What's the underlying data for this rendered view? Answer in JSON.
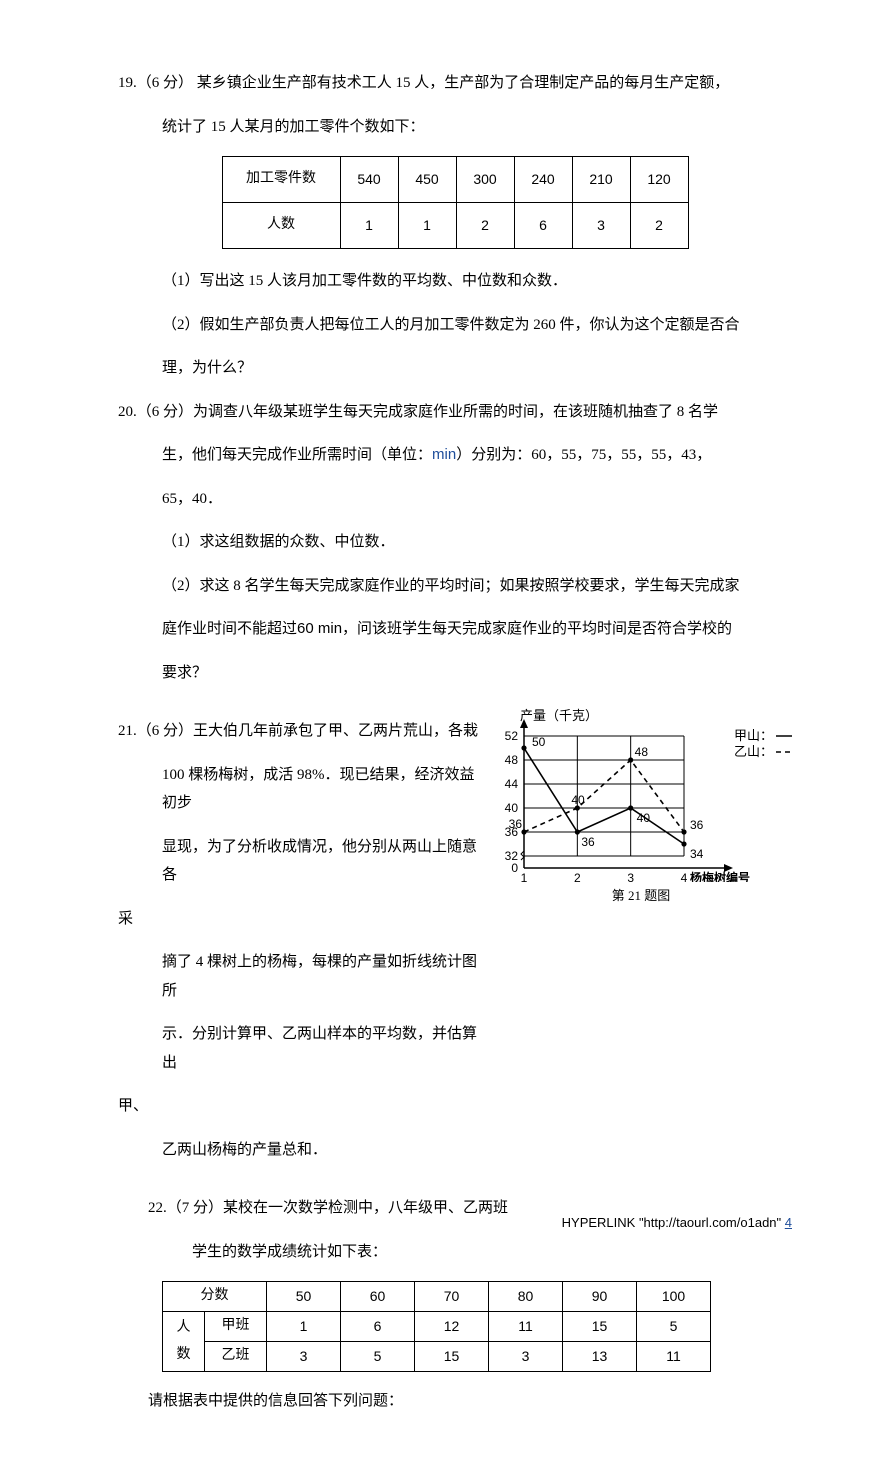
{
  "q19": {
    "label": "19.（6 分） 某乡镇企业生产部有技术工人 15 人，生产部为了合理制定产品的每月生产定额，",
    "label2": "统计了 15 人某月的加工零件个数如下：",
    "table": {
      "header": "加工零件数",
      "row2h": "人数",
      "cols": [
        "540",
        "450",
        "300",
        "240",
        "210",
        "120"
      ],
      "vals": [
        "1",
        "1",
        "2",
        "6",
        "3",
        "2"
      ]
    },
    "p1": "（1）写出这 15 人该月加工零件数的平均数、中位数和众数．",
    "p2a": "（2）假如生产部负责人把每位工人的月加工零件数定为 260 件，你认为这个定额是否合",
    "p2b": "理，为什么？"
  },
  "q20": {
    "l1": "20.（6 分）为调查八年级某班学生每天完成家庭作业所需的时间，在该班随机抽查了 8 名学",
    "l2a": "生，他们每天完成作业所需时间（单位：",
    "l2unit": "min",
    "l2b": "）分别为：60，55，75，55，55，43，",
    "l3": "65，40．",
    "p1": "（1）求这组数据的众数、中位数．",
    "p2a": "（2）求这 8 名学生每天完成家庭作业的平均时间；如果按照学校要求，学生每天完成家",
    "p2b_a": "庭作业时间不能超过",
    "p2b_t": "60 min",
    "p2b_b": "，问该班学生每天完成家庭作业的平均时间是否符合学校的",
    "p2c": "要求？"
  },
  "q21": {
    "l1": "21.（6 分）王大伯几年前承包了甲、乙两片荒山，各栽",
    "l2": "100 棵杨梅树，成活 98%．现已结果，经济效益初步",
    "l3": "显现，为了分析收成情况，他分别从两山上随意各",
    "l3b": "采",
    "l4": "摘了 4 棵树上的杨梅，每棵的产量如折线统计图所",
    "l5": "示．分别计算甲、乙两山样本的平均数，并估算出",
    "l5b": "甲、",
    "l6": "乙两山杨梅的产量总和．",
    "chart": {
      "ylabel": "产量（千克）",
      "xlabel": "杨梅树编号",
      "legend_a": "甲山：",
      "legend_b": "乙山：",
      "yticks": [
        "0",
        "32",
        "36",
        "40",
        "44",
        "48",
        "52"
      ],
      "xticks": [
        "1",
        "2",
        "3",
        "4"
      ],
      "series_a": [
        50,
        36,
        40,
        34
      ],
      "series_b": [
        36,
        40,
        48,
        36
      ],
      "pt_labels_a": [
        "50",
        "36",
        "40",
        "34"
      ],
      "pt_labels_b": [
        "36",
        "40",
        "48",
        "36"
      ],
      "colors": {
        "axis": "#000000",
        "grid": "#000000",
        "solid": "#000000",
        "dash": "#000000",
        "bg": "#ffffff"
      },
      "caption": "第 21 题图"
    }
  },
  "q22": {
    "l1": "22.（7 分）某校在一次数学检测中，八年级甲、乙两班",
    "l2": "学生的数学成绩统计如下表：",
    "table": {
      "h_score": "分数",
      "h_people": "人",
      "h_people2": "数",
      "row_a": "甲班",
      "row_b": "乙班",
      "scores": [
        "50",
        "60",
        "70",
        "80",
        "90",
        "100"
      ],
      "a": [
        "1",
        "6",
        "12",
        "11",
        "15",
        "5"
      ],
      "b": [
        "3",
        "5",
        "15",
        "3",
        "13",
        "11"
      ]
    },
    "after": "请根据表中提供的信息回答下列问题："
  },
  "footer": {
    "t1": "HYPERLINK \"http://taourl.com/o1adn\" ",
    "pn": "4"
  }
}
